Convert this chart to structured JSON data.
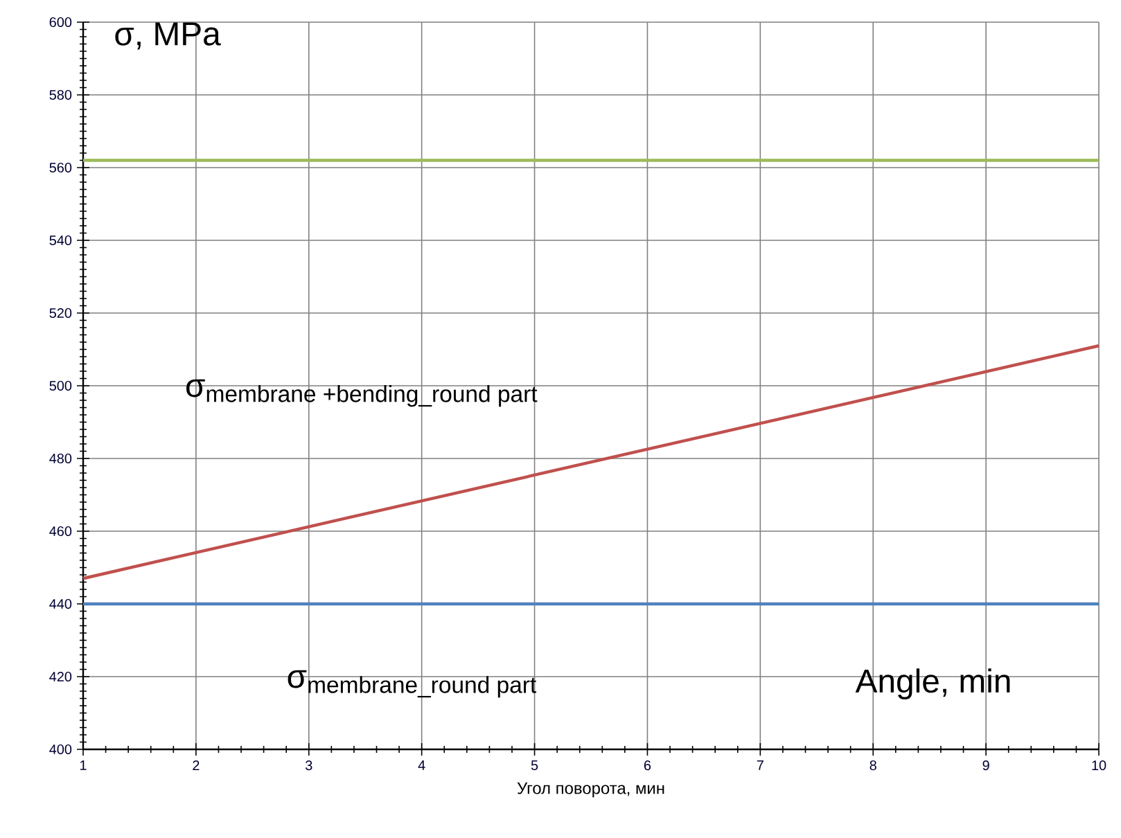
{
  "chart_data": {
    "type": "line",
    "xlabel": "Угол поворота, мин",
    "annotations": [
      "σ, MPa",
      "Angle, min",
      "\\text{σ}_{\\text{membrane +bending\\_round part}}",
      "\\text{σ}_{\\text{membrane\\_round part}}"
    ],
    "xlim": [
      1,
      10
    ],
    "xticks": [
      1,
      2,
      3,
      4,
      5,
      6,
      7,
      8,
      9,
      10
    ],
    "ylim": [
      400,
      600
    ],
    "yticks": [
      400,
      420,
      440,
      460,
      480,
      500,
      520,
      540,
      560,
      580,
      600
    ],
    "grid": true,
    "x": [
      1,
      10
    ],
    "series": [
      {
        "color": "#9bbb59",
        "values": [
          562,
          562
        ]
      },
      {
        "color": "#c0504d",
        "values": [
          447,
          511
        ]
      },
      {
        "color": "#4f81bd",
        "values": [
          440,
          440
        ]
      }
    ]
  }
}
